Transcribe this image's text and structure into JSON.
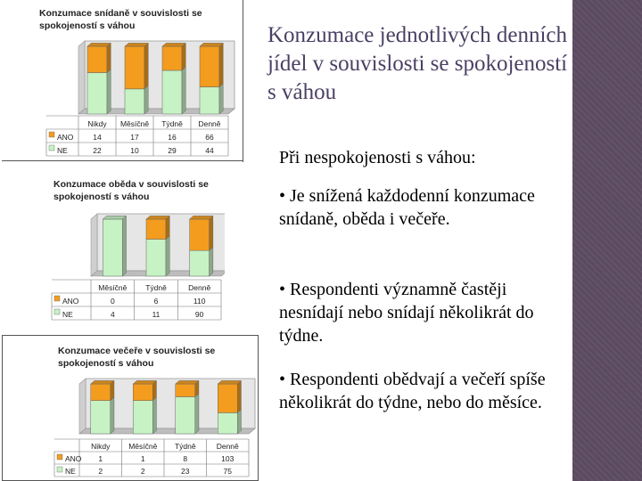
{
  "slide": {
    "title": "Konzumace jednotlivých denních jídel v souvislosti se spokojeností s váhou",
    "subhead": "Při nespokojenosti s váhou:",
    "bullets": [
      "• Je snížená každodenní konzumace snídaně, oběda i večeře.",
      "• Respondenti významně častěji nesnídají nebo snídají několikrát do týdne.",
      "• Respondenti obědvají a večeří spíše několikrát do týdne, nebo do měsíce."
    ],
    "colors": {
      "title": "#4b3f63",
      "sidebar": "#5b4a60",
      "ano": "#f39c1d",
      "ne": "#c6f2c4"
    }
  },
  "chart_data": [
    {
      "type": "bar",
      "stacked": true,
      "title_lines": [
        "Konzumace snídaně v souvislosti se",
        "spokojeností s váhou"
      ],
      "categories": [
        "Nikdy",
        "Měsíčně",
        "Týdně",
        "Denně"
      ],
      "series": [
        {
          "name": "ANO",
          "values": [
            14,
            17,
            16,
            66
          ]
        },
        {
          "name": "NE",
          "values": [
            22,
            10,
            29,
            44
          ]
        }
      ],
      "table_labels": {
        "ano": [
          "14",
          "17",
          "16",
          "66"
        ],
        "ne": [
          "22",
          "10",
          "29",
          "44"
        ]
      },
      "legend": "bottom-table"
    },
    {
      "type": "bar",
      "stacked": true,
      "title_lines": [
        "Konzumace oběda v souvislosti se",
        "spokojeností s váhou"
      ],
      "categories": [
        "Měsíčně",
        "Týdně",
        "Denně"
      ],
      "series": [
        {
          "name": "ANO",
          "values": [
            0,
            6,
            110
          ]
        },
        {
          "name": "NE",
          "values": [
            4,
            11,
            90
          ]
        }
      ],
      "table_labels": {
        "ano": [
          "0",
          "6",
          "110"
        ],
        "ne": [
          "4",
          "11",
          "90"
        ]
      },
      "legend": "bottom-table"
    },
    {
      "type": "bar",
      "stacked": true,
      "title_lines": [
        "Konzumace večeře v souvislosti se",
        "spokojeností s váhou"
      ],
      "categories": [
        "Nikdy",
        "Měsíčně",
        "Týdně",
        "Denně"
      ],
      "series": [
        {
          "name": "ANO",
          "values": [
            1,
            1,
            8,
            103
          ]
        },
        {
          "name": "NE",
          "values": [
            2,
            2,
            23,
            75
          ]
        }
      ],
      "table_labels": {
        "ano": [
          "1",
          "1",
          "8",
          "103"
        ],
        "ne": [
          "2",
          "2",
          "23",
          "75"
        ]
      },
      "legend": "bottom-table"
    }
  ]
}
